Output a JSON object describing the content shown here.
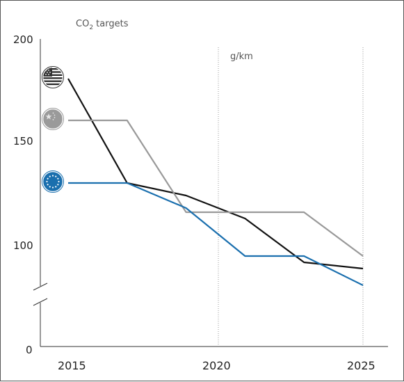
{
  "chart_data": {
    "type": "line",
    "title_main": "CO",
    "title_sub": "2",
    "title_rest": " targets",
    "unit_label": "g/km",
    "x_ticks": [
      "2015",
      "2020",
      "2025"
    ],
    "y_ticks": [
      "200",
      "150",
      "100",
      "0"
    ],
    "axis_break": "between 0 and 100",
    "reference_lines_x": [
      2020,
      2025
    ],
    "grid": false,
    "series": [
      {
        "icon": "us-flag-icon",
        "color": "#111111",
        "x": [
          2015,
          2017,
          2019,
          2021,
          2023,
          2025
        ],
        "y": [
          180,
          130,
          124,
          113,
          92,
          89
        ]
      },
      {
        "icon": "china-flag-icon",
        "color": "#999999",
        "x": [
          2015,
          2017,
          2019,
          2023,
          2025
        ],
        "y": [
          160,
          160,
          116,
          116,
          95
        ]
      },
      {
        "icon": "eu-flag-icon",
        "color": "#1a6fae",
        "x": [
          2015,
          2017,
          2019,
          2021,
          2023,
          2025
        ],
        "y": [
          130,
          130,
          118,
          95,
          95,
          81
        ]
      }
    ]
  }
}
